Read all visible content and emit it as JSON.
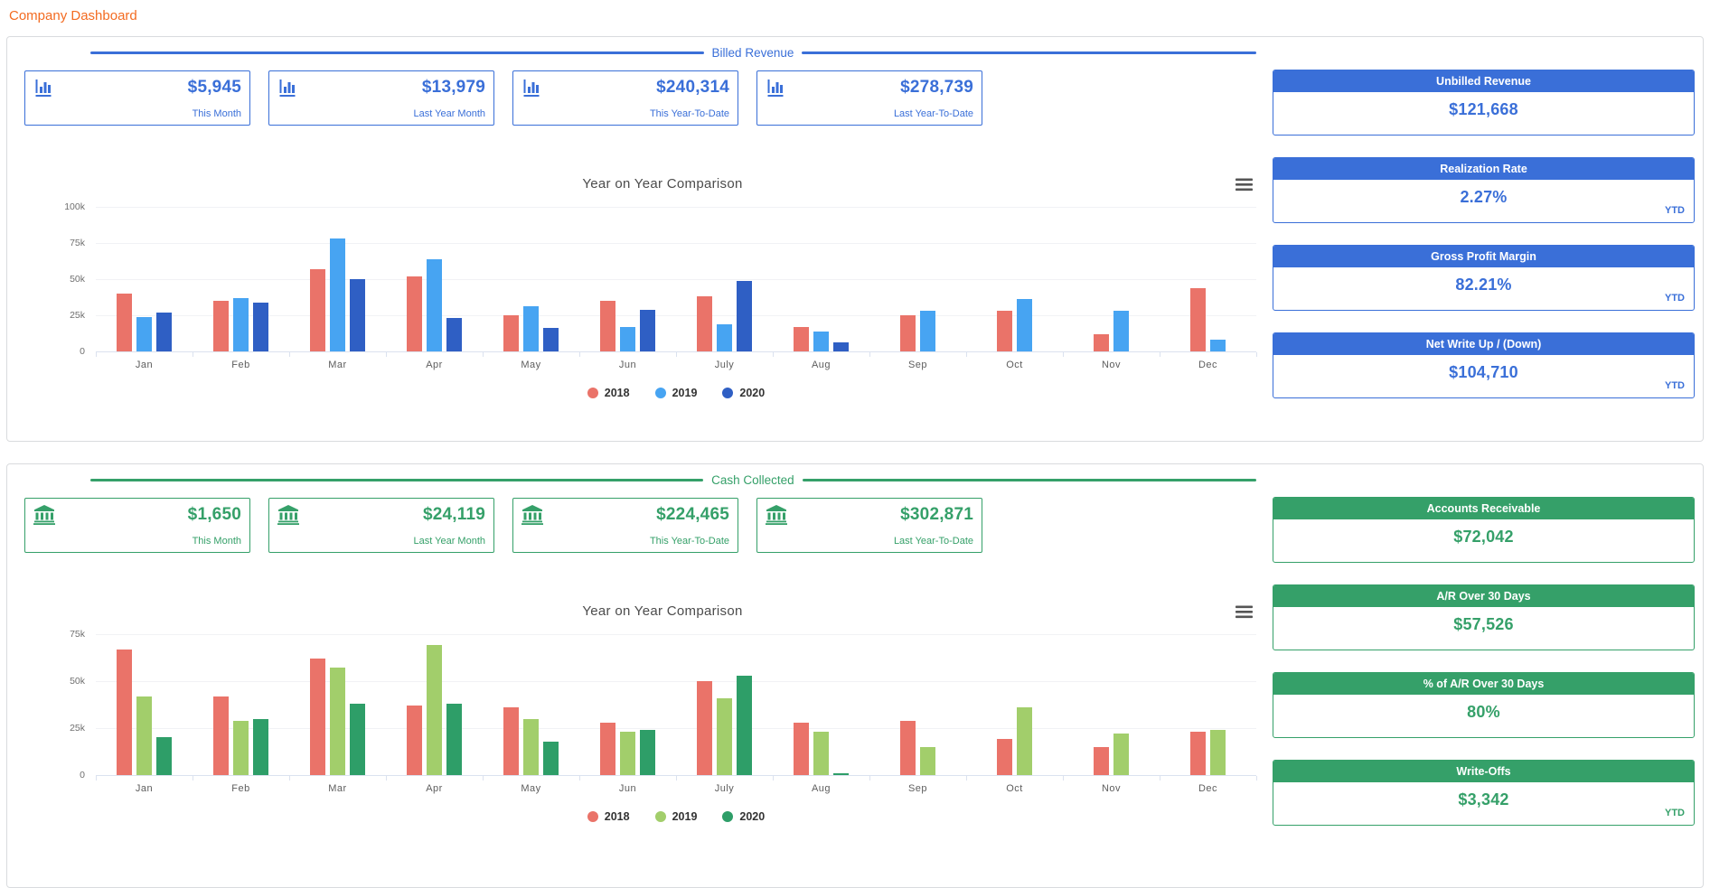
{
  "page_title": "Company Dashboard",
  "colors": {
    "title_orange": "#f36b21",
    "billed_theme": "#3a6fd8",
    "cash_theme": "#35a069",
    "bar_2018": "#ea7369",
    "bar_2019_blue": "#47a4f2",
    "bar_2020_blue": "#2f5fc4",
    "bar_2019_green": "#a2ce6b",
    "bar_2020_green": "#2e9e68"
  },
  "sections": [
    {
      "title": "Billed Revenue",
      "icon": "bar-chart-icon",
      "menu_icon": "hamburger-menu-icon",
      "stat_cards": [
        {
          "value": "$5,945",
          "label": "This Month"
        },
        {
          "value": "$13,979",
          "label": "Last Year Month"
        },
        {
          "value": "$240,314",
          "label": "This Year-To-Date"
        },
        {
          "value": "$278,739",
          "label": "Last Year-To-Date"
        }
      ],
      "sidebar_cards": [
        {
          "title": "Unbilled Revenue",
          "value": "$121,668",
          "suffix": ""
        },
        {
          "title": "Realization Rate",
          "value": "2.27%",
          "suffix": "YTD"
        },
        {
          "title": "Gross Profit Margin",
          "value": "82.21%",
          "suffix": "YTD"
        },
        {
          "title": "Net Write Up / (Down)",
          "value": "$104,710",
          "suffix": "YTD"
        }
      ]
    },
    {
      "title": "Cash Collected",
      "icon": "bank-icon",
      "menu_icon": "hamburger-menu-icon",
      "stat_cards": [
        {
          "value": "$1,650",
          "label": "This Month"
        },
        {
          "value": "$24,119",
          "label": "Last Year Month"
        },
        {
          "value": "$224,465",
          "label": "This Year-To-Date"
        },
        {
          "value": "$302,871",
          "label": "Last Year-To-Date"
        }
      ],
      "sidebar_cards": [
        {
          "title": "Accounts Receivable",
          "value": "$72,042",
          "suffix": ""
        },
        {
          "title": "A/R Over 30 Days",
          "value": "$57,526",
          "suffix": ""
        },
        {
          "title": "% of A/R Over 30 Days",
          "value": "80%",
          "suffix": ""
        },
        {
          "title": "Write-Offs",
          "value": "$3,342",
          "suffix": "YTD"
        }
      ]
    }
  ],
  "chart_data": [
    {
      "type": "bar",
      "title": "Year on Year Comparison",
      "categories": [
        "Jan",
        "Feb",
        "Mar",
        "Apr",
        "May",
        "Jun",
        "July",
        "Aug",
        "Sep",
        "Oct",
        "Nov",
        "Dec"
      ],
      "series": [
        {
          "name": "2018",
          "color": "#ea7369",
          "values": [
            40000,
            35000,
            57000,
            52000,
            25000,
            35000,
            38000,
            17000,
            25000,
            28000,
            12000,
            44000
          ]
        },
        {
          "name": "2019",
          "color": "#47a4f2",
          "values": [
            24000,
            37000,
            78000,
            64000,
            31000,
            17000,
            19000,
            14000,
            28000,
            36000,
            28000,
            8000
          ]
        },
        {
          "name": "2020",
          "color": "#2f5fc4",
          "values": [
            27000,
            34000,
            50000,
            23000,
            16000,
            29000,
            49000,
            6000,
            0,
            0,
            0,
            0
          ]
        }
      ],
      "ylim": [
        0,
        100000
      ],
      "yticks": [
        "0",
        "25k",
        "50k",
        "75k",
        "100k"
      ],
      "grid": true,
      "legend_position": "bottom"
    },
    {
      "type": "bar",
      "title": "Year on Year Comparison",
      "categories": [
        "Jan",
        "Feb",
        "Mar",
        "Apr",
        "May",
        "Jun",
        "July",
        "Aug",
        "Sep",
        "Oct",
        "Nov",
        "Dec"
      ],
      "series": [
        {
          "name": "2018",
          "color": "#ea7369",
          "values": [
            67000,
            42000,
            62000,
            37000,
            36000,
            28000,
            50000,
            28000,
            29000,
            19000,
            15000,
            23000
          ]
        },
        {
          "name": "2019",
          "color": "#a2ce6b",
          "values": [
            42000,
            29000,
            57000,
            69000,
            30000,
            23000,
            41000,
            23000,
            15000,
            36000,
            22000,
            24000
          ]
        },
        {
          "name": "2020",
          "color": "#2e9e68",
          "values": [
            20000,
            30000,
            38000,
            38000,
            18000,
            24000,
            53000,
            1000,
            0,
            0,
            0,
            0
          ]
        }
      ],
      "ylim": [
        0,
        75000
      ],
      "yticks": [
        "0",
        "25k",
        "50k",
        "75k"
      ],
      "grid": true,
      "legend_position": "bottom"
    }
  ]
}
